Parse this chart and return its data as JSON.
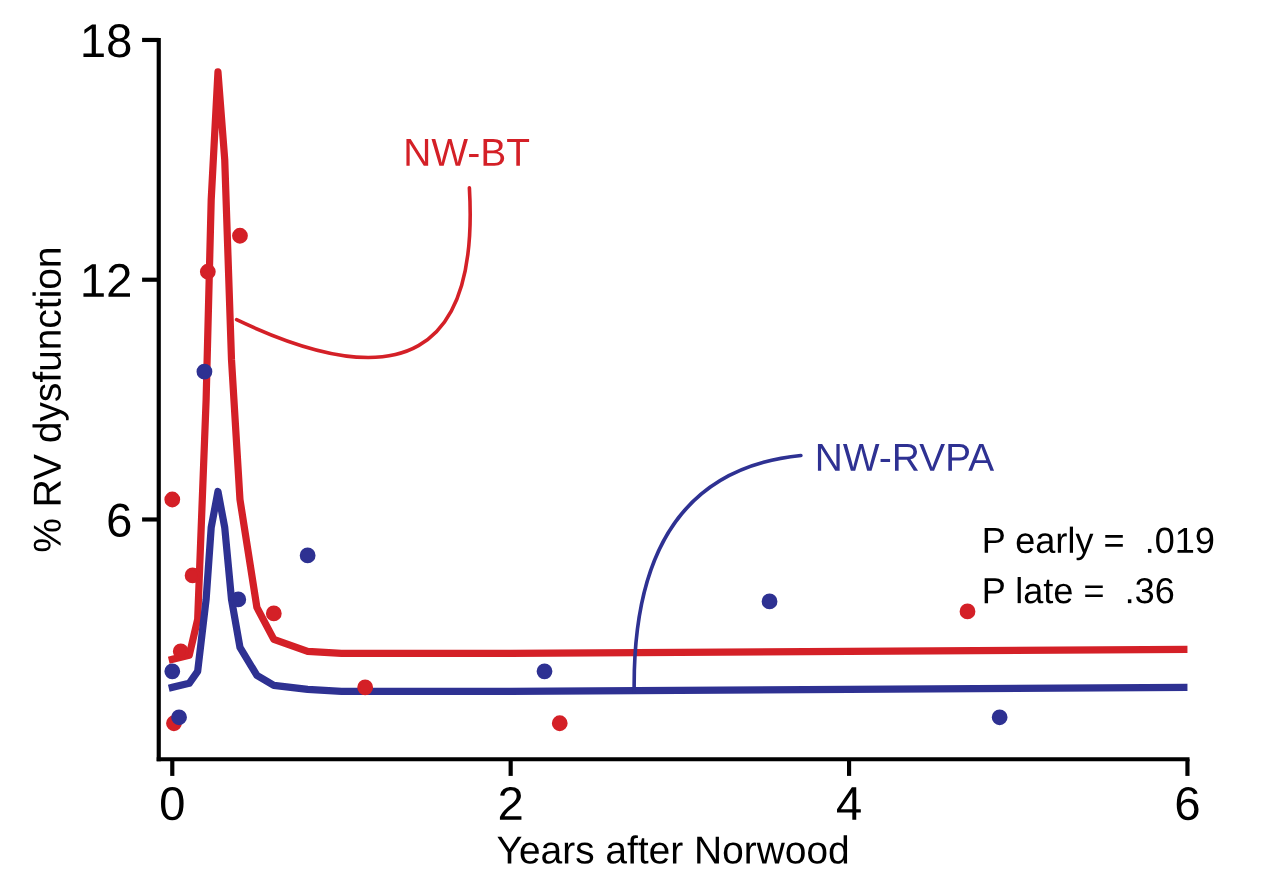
{
  "chart_data": {
    "type": "line",
    "xlabel": "Years after Norwood",
    "ylabel": "% RV dysfunction",
    "xlim": [
      -0.08,
      6
    ],
    "xticks": [
      0,
      2,
      4,
      6
    ],
    "ylim": [
      0,
      18
    ],
    "yticks": [
      6,
      12,
      18
    ],
    "grid": false,
    "legend": false,
    "series": [
      {
        "color": "#d42027",
        "x": [
          0,
          0.1,
          0.15,
          0.2,
          0.23,
          0.27,
          0.31,
          0.35,
          0.4,
          0.5,
          0.6,
          0.8,
          1.0,
          2,
          4,
          6
        ],
        "values": [
          2.5,
          2.6,
          3.5,
          9,
          14,
          17.2,
          15,
          10,
          6.5,
          3.8,
          3.0,
          2.7,
          2.65,
          2.65,
          2.7,
          2.75
        ]
      },
      {
        "color": "#2e3192",
        "x": [
          0,
          0.1,
          0.15,
          0.2,
          0.23,
          0.27,
          0.31,
          0.35,
          0.4,
          0.5,
          0.6,
          0.8,
          1.0,
          2,
          4,
          6
        ],
        "values": [
          1.8,
          1.9,
          2.2,
          4,
          5.8,
          6.7,
          5.8,
          4,
          2.8,
          2.1,
          1.85,
          1.75,
          1.7,
          1.7,
          1.75,
          1.8
        ]
      },
      {
        "type": "scatter",
        "color": "#d42027",
        "x": [
          0,
          0.05,
          0.01,
          0.12,
          0.21,
          0.4,
          0.6,
          1.14,
          2.29,
          4.7
        ],
        "values": [
          6.5,
          2.7,
          0.9,
          4.6,
          12.2,
          13.1,
          3.65,
          1.8,
          0.9,
          3.7
        ]
      },
      {
        "type": "scatter",
        "color": "#2e3192",
        "x": [
          0,
          0.04,
          0.19,
          0.39,
          0.8,
          2.2,
          3.53,
          4.89
        ],
        "values": [
          2.2,
          1.05,
          9.7,
          4.0,
          5.1,
          2.2,
          3.95,
          1.05
        ]
      }
    ],
    "annotations": [
      {
        "text": "NW-BT",
        "x": 0.38,
        "y": 11
      },
      {
        "text": "NW-RVPA",
        "x": 2.73,
        "y": 1.7
      },
      "P early =  .019",
      "P late =  .36"
    ]
  }
}
